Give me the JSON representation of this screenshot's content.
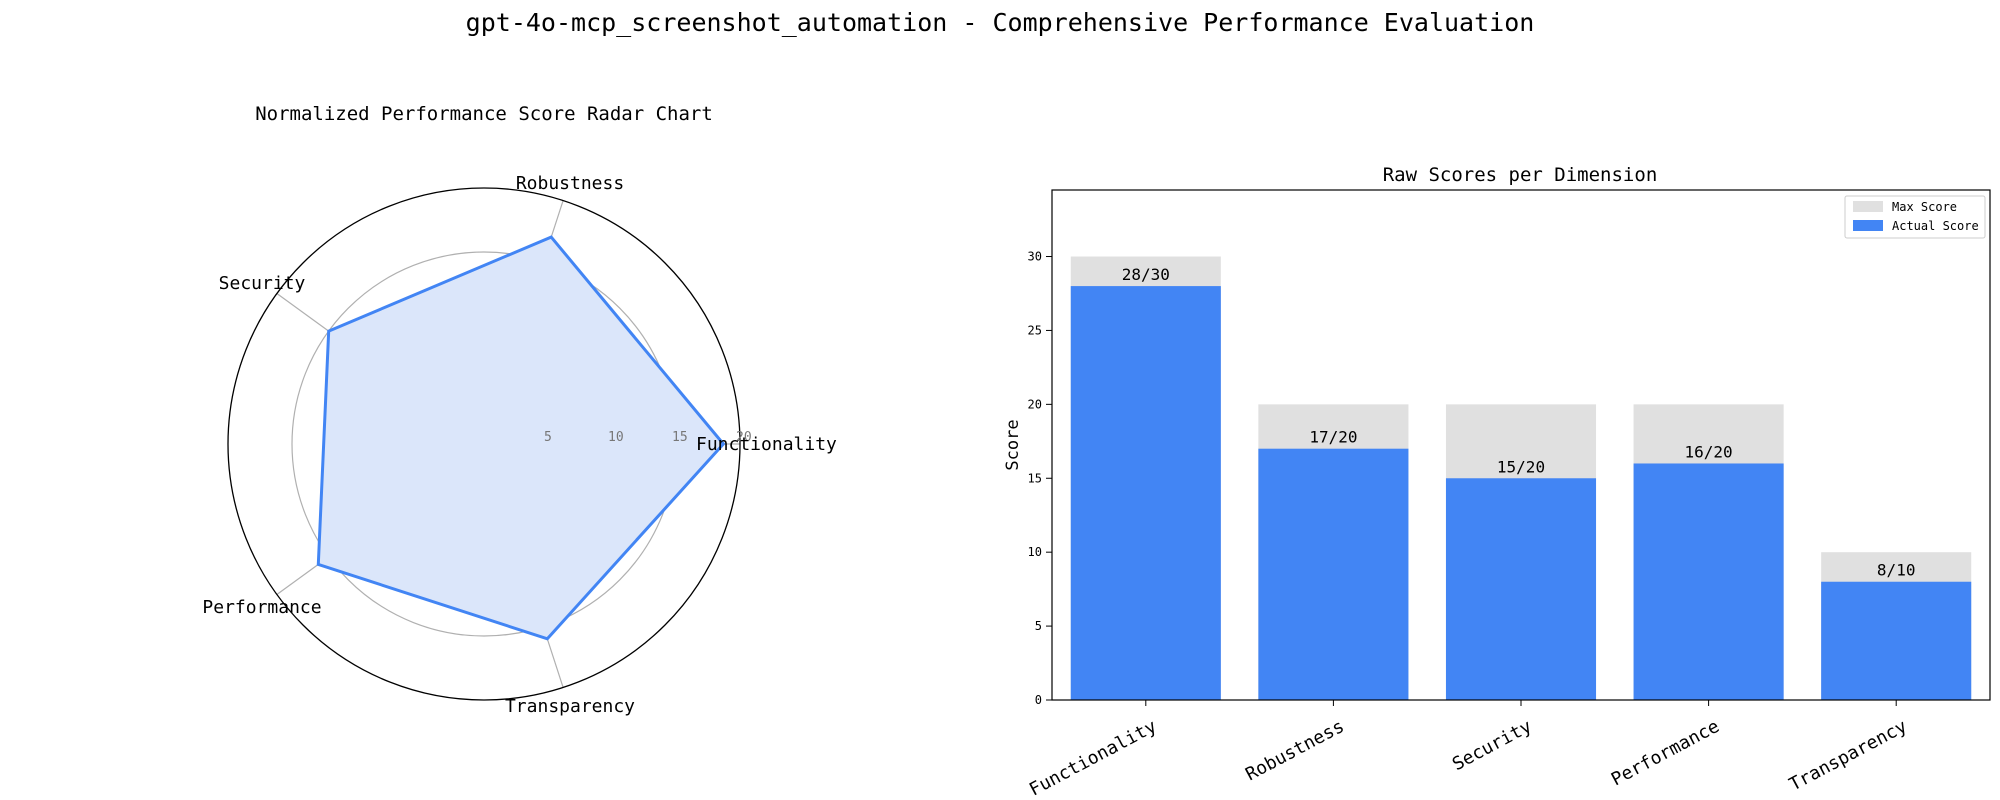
{
  "figure": {
    "title": "gpt-4o-mcp_screenshot_automation - Comprehensive Performance Evaluation"
  },
  "colors": {
    "accent": "#4285f4",
    "fill": "#dbe6fa",
    "max_bar": "#e0e0e0",
    "grid": "#b0b0b0"
  },
  "chart_data": [
    {
      "type": "radar",
      "title": "Normalized Performance Score Radar Chart",
      "axes": [
        "Functionality",
        "Robustness",
        "Security",
        "Performance",
        "Transparency"
      ],
      "values": [
        18.7,
        17,
        15,
        16,
        16
      ],
      "r_ticks": [
        "5",
        "10",
        "15",
        "20"
      ],
      "rlim": [
        0,
        20
      ],
      "grid": true
    },
    {
      "type": "bar",
      "title": "Raw Scores per Dimension",
      "categories": [
        "Functionality",
        "Robustness",
        "Security",
        "Performance",
        "Transparency"
      ],
      "ylabel": "Score",
      "ylim": [
        0,
        34.5
      ],
      "y_ticks": [
        0,
        5,
        10,
        15,
        20,
        25,
        30
      ],
      "legend_position": "top-right",
      "series": [
        {
          "name": "Max Score",
          "values": [
            30,
            20,
            20,
            20,
            10
          ]
        },
        {
          "name": "Actual Score",
          "values": [
            28,
            17,
            15,
            16,
            8
          ]
        }
      ],
      "data_labels": [
        "28/30",
        "17/20",
        "15/20",
        "16/20",
        "8/10"
      ]
    }
  ]
}
